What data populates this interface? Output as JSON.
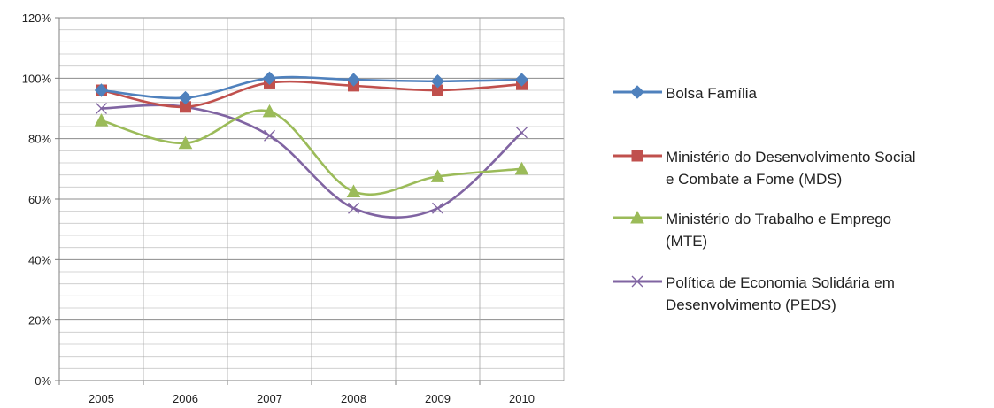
{
  "chart_data": {
    "type": "line",
    "title": "",
    "xlabel": "",
    "ylabel": "",
    "categories": [
      "2005",
      "2006",
      "2007",
      "2008",
      "2009",
      "2010"
    ],
    "ylim": [
      0,
      1.2
    ],
    "yticks": [
      "0%",
      "20%",
      "40%",
      "60%",
      "80%",
      "100%",
      "120%"
    ],
    "grid": true,
    "smooth": true,
    "legend_position": "right",
    "series": [
      {
        "name": "Bolsa Família",
        "color": "#4F81BD",
        "marker": "diamond",
        "values": [
          0.96,
          0.935,
          1.0,
          0.995,
          0.99,
          0.995
        ]
      },
      {
        "name": "Ministério do Desenvolvimento Social e Combate a Fome (MDS)",
        "color": "#C0504D",
        "marker": "square",
        "values": [
          0.96,
          0.905,
          0.985,
          0.975,
          0.96,
          0.98
        ]
      },
      {
        "name": "Ministério do Trabalho e Emprego (MTE)",
        "color": "#9BBB59",
        "marker": "triangle",
        "values": [
          0.86,
          0.785,
          0.89,
          0.625,
          0.675,
          0.7
        ]
      },
      {
        "name": "Política de Economia Solidária em Desenvolvimento (PEDS)",
        "color": "#8064A2",
        "marker": "x",
        "values": [
          0.9,
          0.905,
          0.81,
          0.57,
          0.57,
          0.82
        ]
      }
    ]
  },
  "legend": {
    "items": [
      {
        "label": "Bolsa Família"
      },
      {
        "label": "Ministério do Desenvolvimento Social\ne Combate a Fome (MDS)"
      },
      {
        "label": "Ministério do Trabalho e Emprego\n(MTE)"
      },
      {
        "label": "Política de Economia Solidária em\nDesenvolvimento (PEDS)"
      }
    ]
  }
}
